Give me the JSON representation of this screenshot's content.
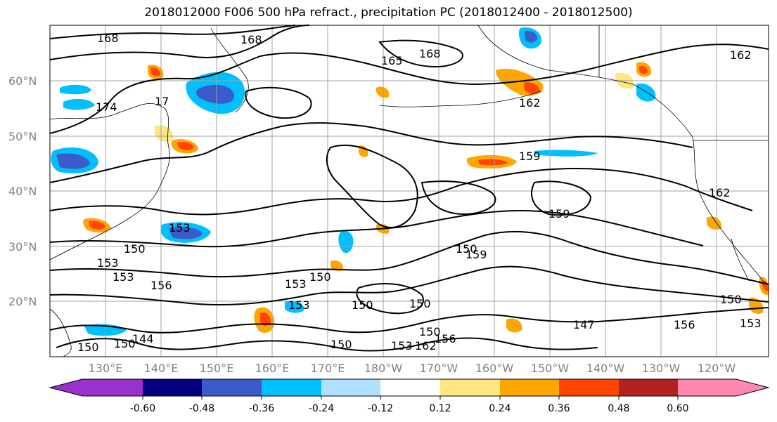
{
  "title": "2018012000 F006 500 hPa refract., precipitation PC (2018012400 - 2018012500)",
  "lat_labels": [
    "60°N",
    "50°N",
    "40°N",
    "30°N",
    "20°N"
  ],
  "lon_labels": [
    "130°E",
    "140°E",
    "150°E",
    "160°E",
    "170°E",
    "180°W",
    "170°W",
    "160°W",
    "150°W",
    "140°W",
    "130°W",
    "120°W"
  ],
  "colorbar": {
    "colors": [
      "#9932cc",
      "#000080",
      "#3a5bc9",
      "#00bfff",
      "#b0e0ff",
      "#ffffff",
      "#ffe680",
      "#ffa500",
      "#ff4500",
      "#b22222",
      "#ff88b0"
    ],
    "tick_labels": [
      "-0.60",
      "-0.48",
      "-0.36",
      "-0.24",
      "-0.12",
      "0.12",
      "0.24",
      "0.36",
      "0.48",
      "0.60"
    ]
  },
  "contour_labels": [
    "168",
    "168",
    "168",
    "165",
    "162",
    "174",
    "17",
    "162",
    "159",
    "159",
    "162",
    "153",
    "150",
    "153",
    "153",
    "150",
    "156",
    "153",
    "150",
    "147",
    "150",
    "150",
    "159",
    "150",
    "150",
    "153",
    "144",
    "150",
    "153",
    "162",
    "156",
    "156",
    "150",
    "153",
    "150"
  ]
}
